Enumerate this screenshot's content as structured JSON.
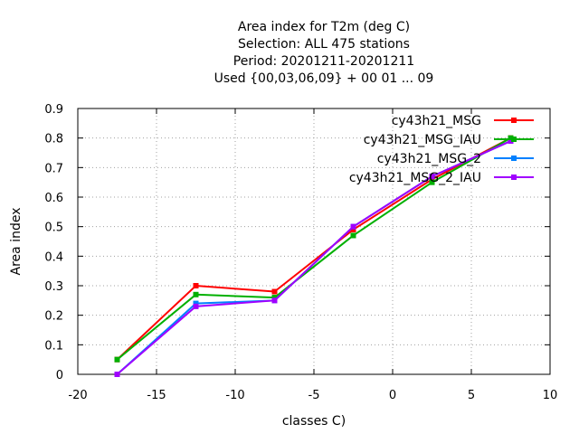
{
  "chart_data": {
    "type": "line",
    "title_lines": [
      "Area index  for T2m (deg C)",
      "Selection: ALL    475 stations",
      "Period: 20201211-20201211",
      "Used {00,03,06,09} + 00 01 ... 09"
    ],
    "xlabel": "classes C)",
    "ylabel": "Area index",
    "xlim": [
      -20,
      10
    ],
    "ylim": [
      0,
      0.9
    ],
    "xticks": [
      -20,
      -15,
      -10,
      -5,
      0,
      5,
      10
    ],
    "yticks": [
      0,
      0.1,
      0.2,
      0.3,
      0.4,
      0.5,
      0.6,
      0.7,
      0.8,
      0.9
    ],
    "grid": true,
    "legend_position": "top-right",
    "x": [
      -17.5,
      -12.5,
      -7.5,
      -2.5,
      2.5,
      7.5
    ],
    "series": [
      {
        "name": "cy43h21_MSG",
        "color": "#ff0000",
        "values": [
          0.05,
          0.3,
          0.28,
          0.49,
          0.66,
          0.8
        ]
      },
      {
        "name": "cy43h21_MSG_IAU",
        "color": "#00b000",
        "values": [
          0.05,
          0.27,
          0.26,
          0.47,
          0.65,
          0.8
        ]
      },
      {
        "name": "cy43h21_MSG_2",
        "color": "#0080ff",
        "values": [
          0.0,
          0.24,
          0.25,
          0.5,
          0.67,
          0.79
        ]
      },
      {
        "name": "cy43h21_MSG_2_IAU",
        "color": "#a000ff",
        "values": [
          0.0,
          0.23,
          0.25,
          0.5,
          0.67,
          0.79
        ]
      }
    ]
  }
}
